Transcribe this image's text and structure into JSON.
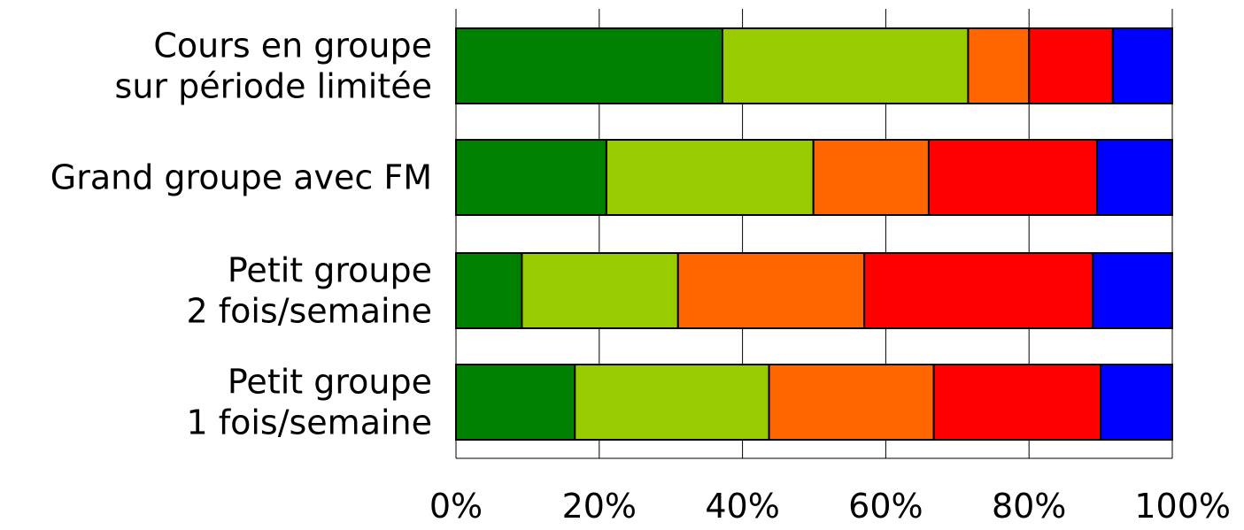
{
  "chart_data": {
    "type": "bar",
    "orientation": "horizontal",
    "stacked": true,
    "percent": true,
    "categories": [
      "Cours en groupe\nsur période limitée",
      "Grand groupe avec FM",
      "Petit groupe\n2 fois/semaine",
      "Petit groupe\n1 fois/semaine"
    ],
    "series": [
      {
        "color": "#008000",
        "values": [
          37.2,
          21.0,
          9.2,
          16.6
        ]
      },
      {
        "color": "#99cc00",
        "values": [
          34.3,
          28.9,
          21.8,
          27.1
        ]
      },
      {
        "color": "#ff6600",
        "values": [
          8.5,
          16.1,
          26.0,
          23.0
        ]
      },
      {
        "color": "#ff0000",
        "values": [
          11.7,
          23.5,
          31.9,
          23.3
        ]
      },
      {
        "color": "#0000ff",
        "values": [
          8.3,
          10.5,
          11.1,
          10.0
        ]
      }
    ],
    "xticks": [
      "0%",
      "20%",
      "40%",
      "60%",
      "80%",
      "100%"
    ],
    "xlim": [
      0,
      100
    ],
    "grid": true,
    "legend": "none",
    "title": "",
    "xlabel": "",
    "ylabel": ""
  }
}
